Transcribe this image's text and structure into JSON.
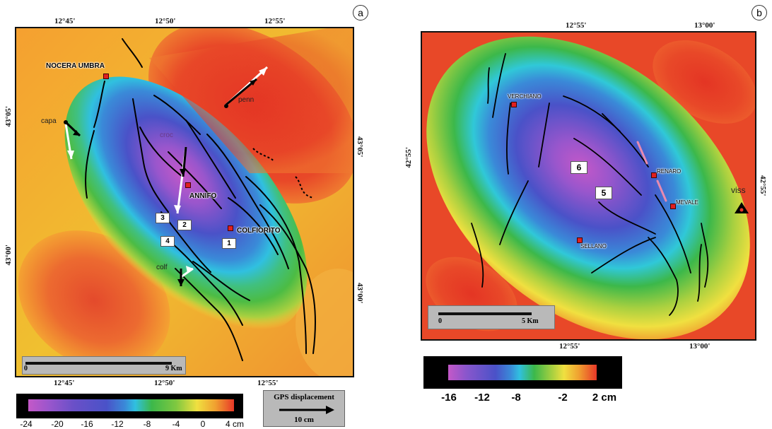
{
  "panel_a": {
    "letter": "a",
    "top_coords": [
      "12°45'",
      "12°50'",
      "12°55'"
    ],
    "bottom_coords": [
      "12°45'",
      "12°50'",
      "12°55'"
    ],
    "left_coords": [
      "43°05'",
      "43°00'"
    ],
    "right_coords": [
      "43°05'",
      "43°00'"
    ],
    "towns": [
      "NOCERA UMBRA",
      "ANNIFO",
      "COLFIORITO"
    ],
    "gps_sites": [
      "penn",
      "capa",
      "croc",
      "colf"
    ],
    "fault_numbers": [
      "1",
      "2",
      "3",
      "4"
    ],
    "scalebar": {
      "start": "0",
      "end": "9 Km"
    },
    "colorbar": {
      "ticks": [
        "-24",
        "-20",
        "-16",
        "-12",
        "-8",
        "-4",
        "0",
        "4 cm"
      ]
    },
    "gps_legend": {
      "title": "GPS displacement",
      "value": "10 cm"
    }
  },
  "panel_b": {
    "letter": "b",
    "top_coords": [
      "12°55'",
      "13°00'"
    ],
    "bottom_coords": [
      "12°55'",
      "13°00'"
    ],
    "left_coords": [
      "42°55'"
    ],
    "right_coords": [
      "42°55'"
    ],
    "towns": [
      "VERCHIANO",
      "RENARO",
      "MEVALE",
      "SELLANO"
    ],
    "gps_sites": [
      "viss"
    ],
    "fault_numbers": [
      "6",
      "5"
    ],
    "scalebar": {
      "start": "0",
      "end": "5 Km"
    },
    "colorbar": {
      "ticks": [
        "-16",
        "-12",
        "-8",
        "-2",
        "2 cm"
      ]
    }
  },
  "colors": {
    "deep": "#c458c8",
    "blue": "#4a52c8",
    "cyan": "#30b8e8",
    "green": "#3cb84a",
    "yellow": "#f0e040",
    "orange": "#f09030",
    "red": "#e83828"
  }
}
